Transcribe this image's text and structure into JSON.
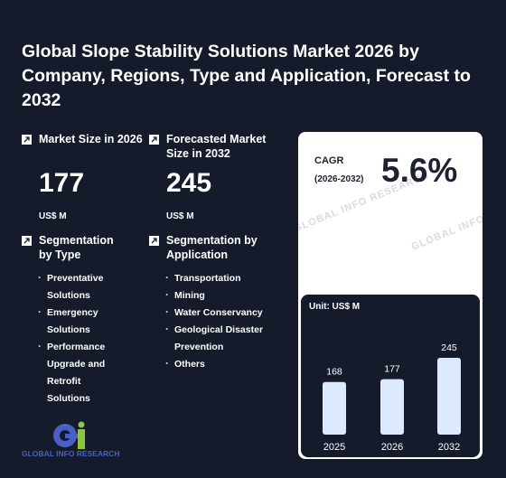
{
  "title": "Global Slope Stability Solutions Market 2026 by Company, Regions, Type and Application, Forecast to 2032",
  "market_size": {
    "label": "Market Size in 2026",
    "value": "177",
    "unit": "US$ M"
  },
  "forecast_size": {
    "label": "Forecasted Market Size in 2032",
    "value": "245",
    "unit": "US$ M"
  },
  "segment_type": {
    "label": "Segmentation by Type",
    "items": [
      "Preventative Solutions",
      "Emergency Solutions",
      "Performance Upgrade and Retrofit Solutions"
    ]
  },
  "segment_application": {
    "label": "Segmentation by Application",
    "items": [
      "Transportation",
      "Mining",
      "Water Conservancy",
      "Geological Disaster Prevention",
      "Others"
    ]
  },
  "cagr": {
    "label": "CAGR",
    "period": "(2026-2032)",
    "value": "5.6%"
  },
  "watermark": "GLOBAL INFO RESEARCH",
  "logo": {
    "text": "GLOBAL INFO RESEARCH"
  },
  "colors": {
    "background": "#161b2c",
    "bar": "#ddeafe",
    "accent": "#4860c8",
    "logo_green": "#8cc63f"
  },
  "chart_data": {
    "type": "bar",
    "unit_label": "Unit: US$ M",
    "categories": [
      "2025",
      "2026",
      "2032"
    ],
    "values": [
      168,
      177,
      245
    ],
    "data_labels": [
      "168",
      "177",
      "245"
    ]
  }
}
